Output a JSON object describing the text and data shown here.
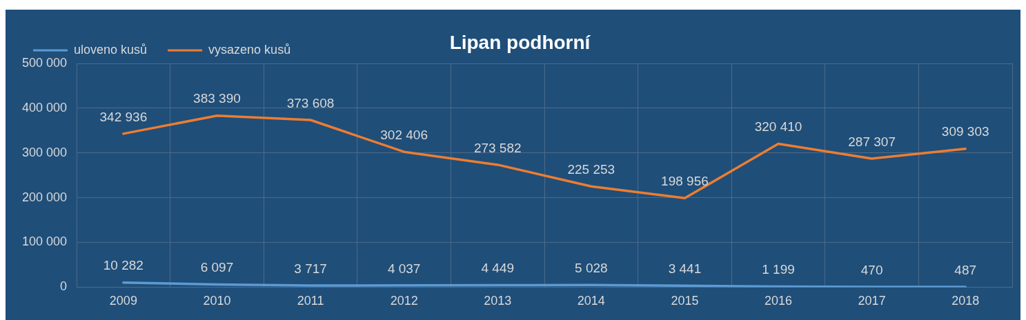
{
  "chart_data": {
    "type": "line",
    "title": "Lipan podhorní",
    "categories": [
      "2009",
      "2010",
      "2011",
      "2012",
      "2013",
      "2014",
      "2015",
      "2016",
      "2017",
      "2018"
    ],
    "series": [
      {
        "name": "uloveno kusů",
        "color": "#5b9bd5",
        "values": [
          10282,
          6097,
          3717,
          4037,
          4449,
          5028,
          3441,
          1199,
          470,
          487
        ],
        "value_labels": [
          "10 282",
          "6 097",
          "3 717",
          "4 037",
          "4 449",
          "5 028",
          "3 441",
          "1 199",
          "470",
          "487"
        ]
      },
      {
        "name": "vysazeno kusů",
        "color": "#ed7d31",
        "values": [
          342936,
          383390,
          373608,
          302406,
          273582,
          225253,
          198956,
          320410,
          287307,
          309303
        ],
        "value_labels": [
          "342 936",
          "383 390",
          "373 608",
          "302 406",
          "273 582",
          "225 253",
          "198 956",
          "320 410",
          "287 307",
          "309 303"
        ]
      }
    ],
    "ylim": [
      0,
      500000
    ],
    "yticks": [
      {
        "value": 0,
        "label": "0"
      },
      {
        "value": 100000,
        "label": "100 000"
      },
      {
        "value": 200000,
        "label": "200 000"
      },
      {
        "value": 300000,
        "label": "300 000"
      },
      {
        "value": 400000,
        "label": "400 000"
      },
      {
        "value": 500000,
        "label": "500 000"
      }
    ],
    "grid": true,
    "legend": "top left",
    "marker": "none",
    "line_style": "solid"
  }
}
